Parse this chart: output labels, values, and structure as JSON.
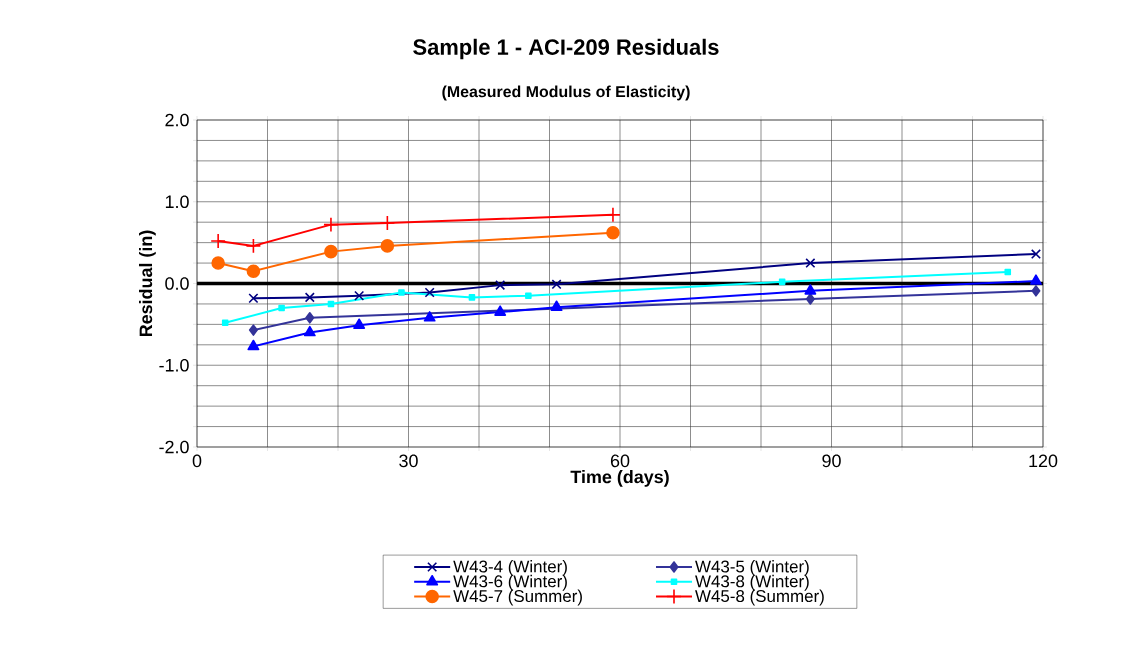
{
  "chart_data": {
    "type": "line",
    "title": "Sample 1 - ACI-209 Residuals",
    "subtitle": "(Measured Modulus of Elasticity)",
    "xlabel": "Time (days)",
    "ylabel": "Residual (in)",
    "xlim": [
      0,
      120
    ],
    "ylim": [
      -2.0,
      2.0
    ],
    "xticks": [
      0,
      {
        "value": 10,
        "label": null
      },
      {
        "value": 20,
        "label": null
      },
      30,
      {
        "value": 40,
        "label": null
      },
      {
        "value": 50,
        "label": null
      },
      60,
      {
        "value": 70,
        "label": null
      },
      {
        "value": 80,
        "label": null
      },
      90,
      {
        "value": 100,
        "label": null
      },
      {
        "value": 110,
        "label": null
      },
      120
    ],
    "yticks": [
      {
        "value": -2.0,
        "label": "-2.0"
      },
      {
        "value": -1.75,
        "label": null
      },
      {
        "value": -1.5,
        "label": null
      },
      {
        "value": -1.25,
        "label": null
      },
      {
        "value": -1.0,
        "label": "-1.0"
      },
      {
        "value": -0.75,
        "label": null
      },
      {
        "value": -0.5,
        "label": null
      },
      {
        "value": -0.25,
        "label": null
      },
      {
        "value": 0.0,
        "label": "0.0"
      },
      {
        "value": 0.25,
        "label": null
      },
      {
        "value": 0.5,
        "label": null
      },
      {
        "value": 0.75,
        "label": null
      },
      {
        "value": 1.0,
        "label": "1.0"
      },
      {
        "value": 1.25,
        "label": null
      },
      {
        "value": 1.5,
        "label": null
      },
      {
        "value": 1.75,
        "label": null
      },
      {
        "value": 2.0,
        "label": "2.0"
      }
    ],
    "grid": true,
    "legend": "bottom",
    "line_style": "solid",
    "ref_lines": [
      {
        "axis": "y",
        "value": 0,
        "color": "#000000"
      }
    ],
    "series": [
      {
        "name": "W43-4 (Winter)",
        "color": "#000080",
        "marker": "cross",
        "x": [
          8,
          16,
          23,
          33,
          43,
          51,
          87,
          119
        ],
        "values": [
          -0.18,
          -0.17,
          -0.15,
          -0.11,
          -0.02,
          -0.01,
          0.25,
          0.36
        ]
      },
      {
        "name": "W43-5 (Winter)",
        "color": "#333399",
        "marker": "diamond",
        "x": [
          8,
          16,
          23,
          33,
          43,
          51,
          87,
          119
        ],
        "values": [
          -0.57,
          -0.42,
          null,
          null,
          null,
          null,
          -0.19,
          -0.09
        ]
      },
      {
        "name": "W43-6 (Winter)",
        "color": "#0000ff",
        "marker": "triangle",
        "x": [
          8,
          16,
          23,
          33,
          43,
          51,
          87,
          119
        ],
        "values": [
          -0.77,
          -0.6,
          -0.51,
          -0.42,
          -0.35,
          -0.29,
          -0.09,
          0.03
        ]
      },
      {
        "name": "W43-8 (Winter)",
        "color": "#00ffff",
        "marker": "square",
        "x": [
          4,
          12,
          19,
          29,
          39,
          47,
          83,
          115
        ],
        "values": [
          -0.48,
          -0.3,
          -0.25,
          -0.11,
          -0.17,
          -0.15,
          0.02,
          0.14
        ]
      },
      {
        "name": "W45-7 (Summer)",
        "color": "#ff6600",
        "marker": "circle",
        "x": [
          3,
          8,
          19,
          27,
          59
        ],
        "values": [
          0.25,
          0.15,
          0.39,
          0.46,
          0.62
        ]
      },
      {
        "name": "W45-8 (Summer)",
        "color": "#ff0000",
        "marker": "plus",
        "x": [
          3,
          8,
          19,
          27,
          59
        ],
        "values": [
          0.52,
          0.46,
          0.72,
          0.74,
          0.84
        ]
      }
    ]
  }
}
